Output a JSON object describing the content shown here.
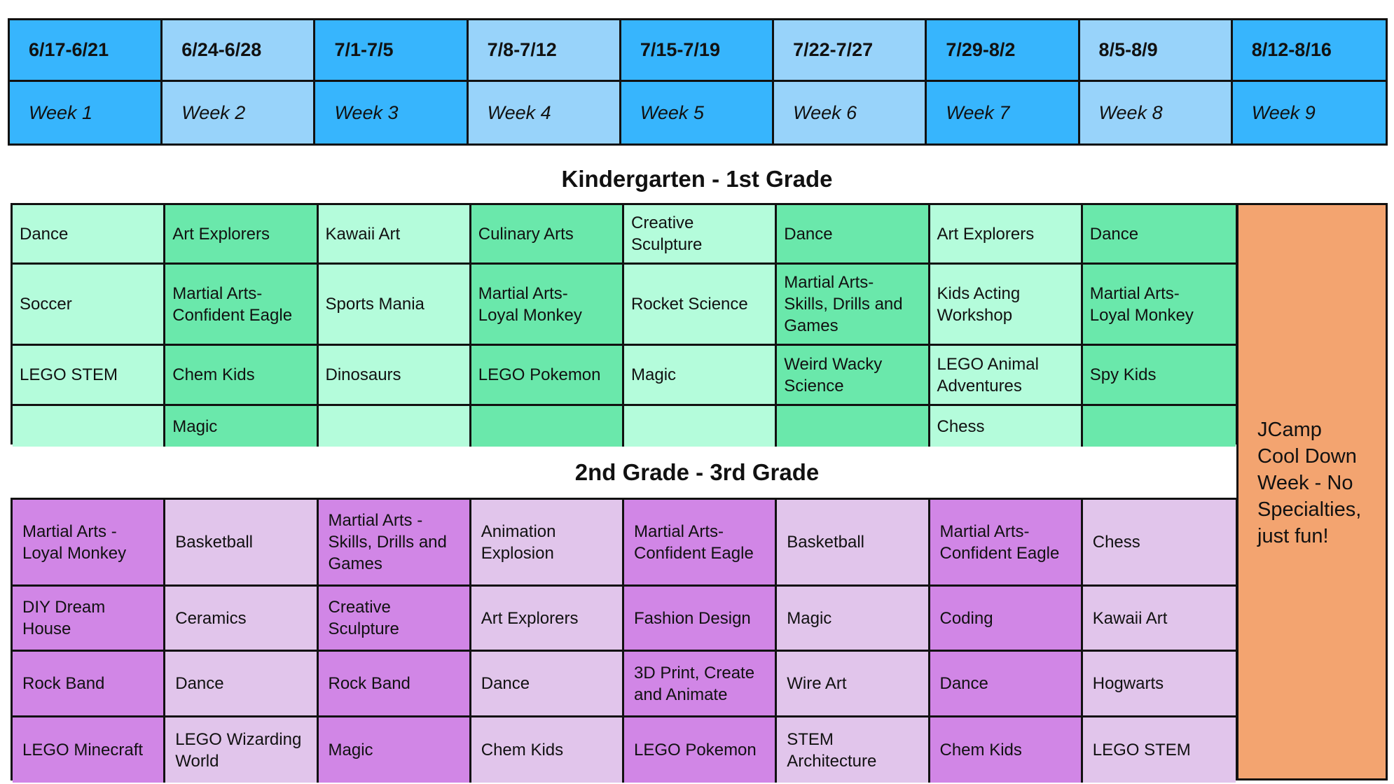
{
  "weeks": {
    "dates": [
      "6/17-6/21",
      "6/24-6/28",
      "7/1-7/5",
      "7/8-7/12",
      "7/15-7/19",
      "7/22-7/27",
      "7/29-8/2",
      "8/5-8/9",
      "8/12-8/16"
    ],
    "labels": [
      "Week 1",
      "Week 2",
      "Week 3",
      "Week 4",
      "Week 5",
      "Week 6",
      "Week 7",
      "Week 8",
      "Week 9"
    ]
  },
  "kindergarten": {
    "title": "Kindergarten - 1st Grade",
    "rows": [
      [
        "Dance",
        "Art Explorers",
        "Kawaii Art",
        "Culinary Arts",
        "Creative\nSculpture",
        "Dance",
        "Art Explorers",
        "Dance"
      ],
      [
        "Soccer",
        "Martial Arts-\nConfident Eagle",
        "Sports Mania",
        "Martial Arts-\nLoyal Monkey",
        "Rocket Science",
        "Martial Arts-\nSkills, Drills and\nGames",
        "Kids Acting\nWorkshop",
        "Martial Arts-\nLoyal Monkey"
      ],
      [
        "LEGO STEM",
        "Chem Kids",
        "Dinosaurs",
        "LEGO Pokemon",
        "Magic",
        "Weird Wacky\nScience",
        "LEGO Animal\nAdventures",
        "Spy Kids"
      ],
      [
        "",
        "Magic",
        "",
        "",
        "",
        "",
        "Chess",
        ""
      ]
    ]
  },
  "grade23": {
    "title": "2nd Grade - 3rd Grade",
    "rows": [
      [
        "Martial Arts -\nLoyal Monkey",
        "Basketball",
        "Martial Arts -\nSkills, Drills and\nGames",
        "Animation\nExplosion",
        "Martial Arts-\nConfident Eagle",
        "Basketball",
        "Martial Arts-\nConfident Eagle",
        "Chess"
      ],
      [
        "DIY Dream\nHouse",
        "Ceramics",
        "Creative\nSculpture",
        "Art Explorers",
        "Fashion Design",
        "Magic",
        "Coding",
        "Kawaii Art"
      ],
      [
        "Rock Band",
        "Dance",
        "Rock Band",
        "Dance",
        "3D Print, Create\nand Animate",
        "Wire Art",
        "Dance",
        "Hogwarts"
      ],
      [
        "LEGO Minecraft",
        "LEGO Wizarding\nWorld",
        "Magic",
        "Chem Kids",
        "LEGO Pokemon",
        "STEM\nArchitecture",
        "Chem Kids",
        "LEGO STEM"
      ]
    ]
  },
  "cooldown": {
    "text": "JCamp\nCool Down\nWeek - No\nSpecialties,\njust fun!"
  },
  "colors": {
    "week_dark": "#37b5fd",
    "week_light": "#98d3fa",
    "k1_light": "#b4fcdb",
    "k1_dark": "#6ae8ab",
    "g23_dark": "#d186e6",
    "g23_light": "#e1c5eb",
    "cooldown": "#f3a470"
  }
}
